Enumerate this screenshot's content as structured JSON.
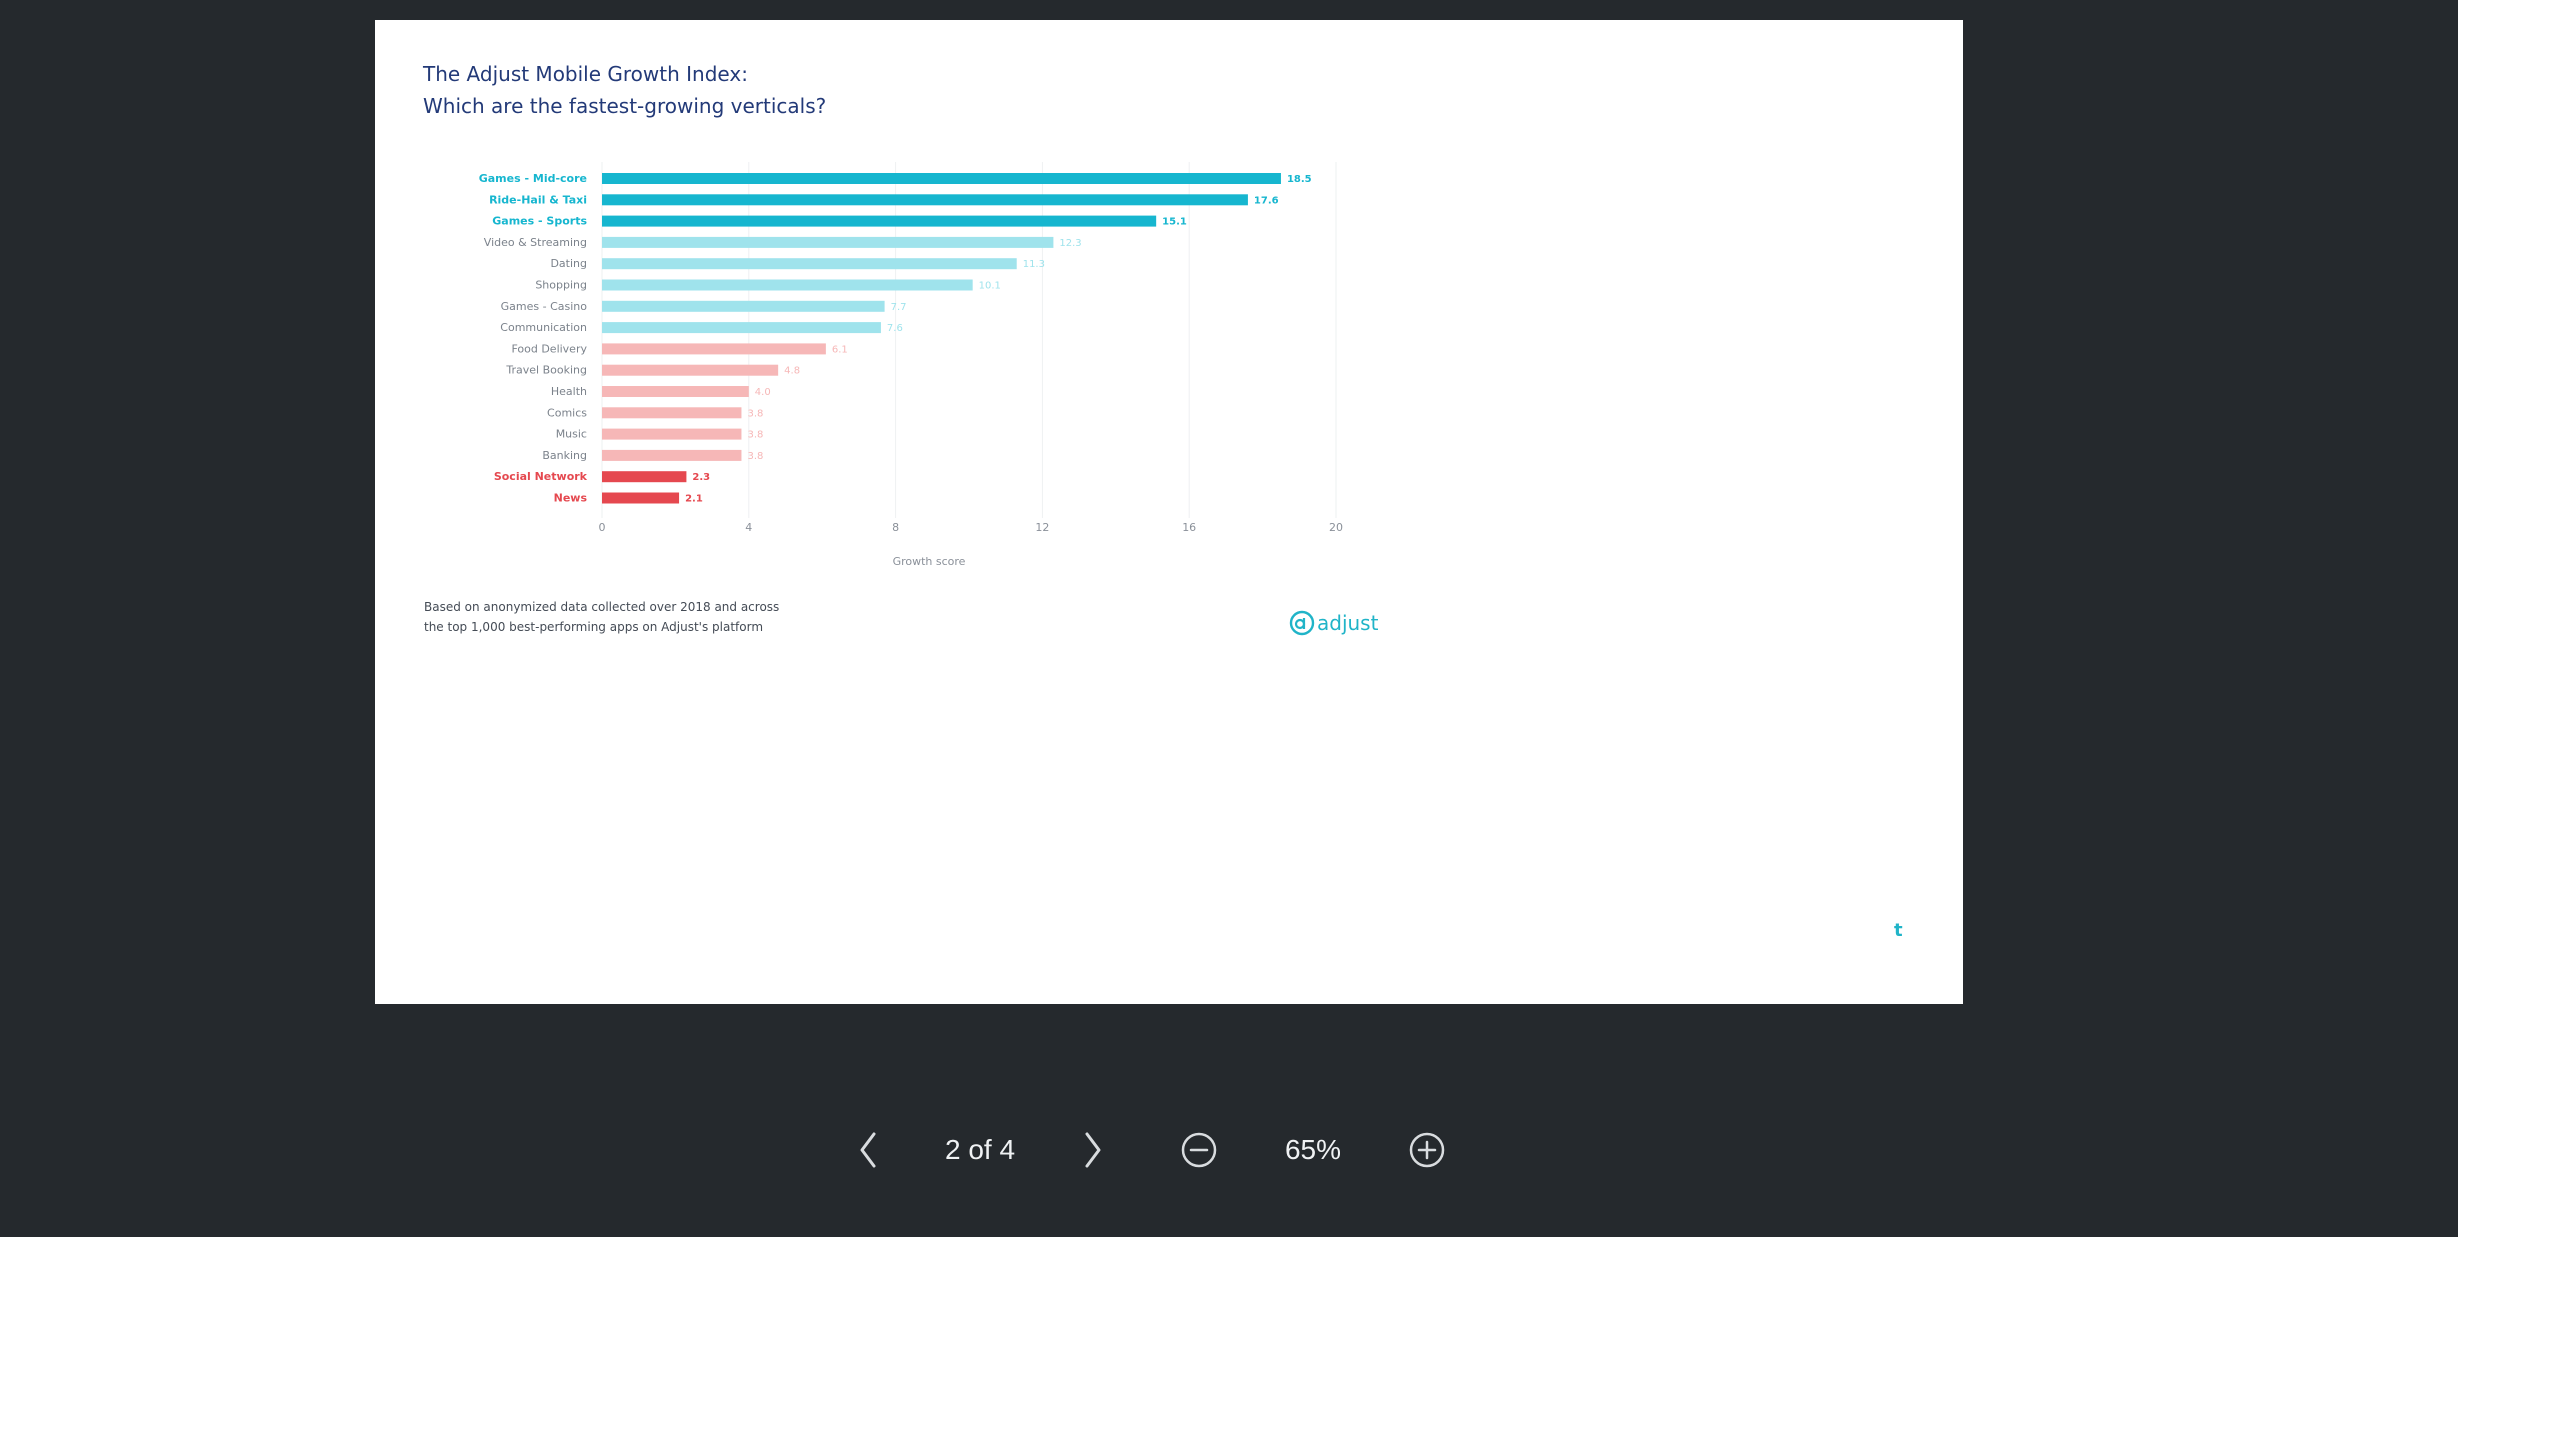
{
  "viewer": {
    "page_indicator": "2 of 4",
    "zoom_level": "65%",
    "icons": {
      "prev": "chevron-left-icon",
      "next": "chevron-right-icon",
      "zoom_out": "zoom-out-icon",
      "zoom_in": "zoom-in-icon"
    }
  },
  "slide": {
    "title_line1": "The Adjust Mobile Growth Index:",
    "title_line2": "Which are the fastest-growing verticals?",
    "footnote_line1": "Based on anonymized data collected over 2018 and across",
    "footnote_line2": "the top 1,000 best-performing apps on Adjust's platform",
    "logo_text": "adjust",
    "corner_mark": "t"
  },
  "colors": {
    "teal_dark": "#16b6cf",
    "teal_light": "#9fe3ec",
    "pink_light": "#f6b7b7",
    "red_dark": "#e5484f",
    "title_blue": "#233a78"
  },
  "chart_data": {
    "type": "bar",
    "orientation": "horizontal",
    "xlabel": "Growth score",
    "xlim": [
      0,
      20
    ],
    "xticks": [
      "0",
      "4",
      "8",
      "12",
      "16",
      "20"
    ],
    "grid": true,
    "categories": [
      "Games - Mid-core",
      "Ride-Hail & Taxi",
      "Games - Sports",
      "Video & Streaming",
      "Dating",
      "Shopping",
      "Games - Casino",
      "Communication",
      "Food Delivery",
      "Travel Booking",
      "Health",
      "Comics",
      "Music",
      "Banking",
      "Social Network",
      "News"
    ],
    "values": [
      18.5,
      17.6,
      15.1,
      12.3,
      11.3,
      10.1,
      7.7,
      7.6,
      6.1,
      4.8,
      4.0,
      3.8,
      3.8,
      3.8,
      2.3,
      2.1
    ],
    "value_labels": [
      "18.5",
      "17.6",
      "15.1",
      "12.3",
      "11.3",
      "10.1",
      "7.7",
      "7.6",
      "6.1",
      "4.8",
      "4.0",
      "3.8",
      "3.8",
      "3.8",
      "2.3",
      "2.1"
    ],
    "groups": [
      "teal_dark",
      "teal_dark",
      "teal_dark",
      "teal_light",
      "teal_light",
      "teal_light",
      "teal_light",
      "teal_light",
      "pink_light",
      "pink_light",
      "pink_light",
      "pink_light",
      "pink_light",
      "pink_light",
      "red_dark",
      "red_dark"
    ]
  }
}
